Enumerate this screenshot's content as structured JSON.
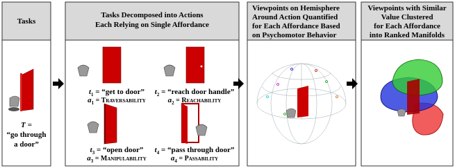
{
  "panels": [
    {
      "header": [
        "Tasks"
      ],
      "task": {
        "variable": "T",
        "equals": "=",
        "lines": [
          "“go through",
          "a door”"
        ]
      }
    },
    {
      "header": [
        "Tasks Decomposed into Actions",
        "Each Relying on Single Affordance"
      ],
      "actions": [
        {
          "task_var": "t",
          "index": "1",
          "task": " = “get to door”",
          "aff_var": "a",
          "affordance": " = Traversability"
        },
        {
          "task_var": "t",
          "index": "2",
          "task": " = “reach door handle”",
          "aff_var": "a",
          "affordance": " = Reachability"
        },
        {
          "task_var": "t",
          "index": "3",
          "task": " = “open door”",
          "aff_var": "a",
          "affordance": " = Manipulability"
        },
        {
          "task_var": "t",
          "index": "4",
          "task": " = “pass through door”",
          "aff_var": "a",
          "affordance": " = Passability"
        }
      ]
    },
    {
      "header": [
        "Viewpoints on Hemisphere",
        "Around Action Quantified",
        "for Each Affordance Based",
        "on Psychomotor Behavior"
      ]
    },
    {
      "header": [
        "Viewpoints with Similar",
        "Value Clustered",
        "for Each Affordance",
        "into Ranked Manifolds"
      ]
    }
  ]
}
